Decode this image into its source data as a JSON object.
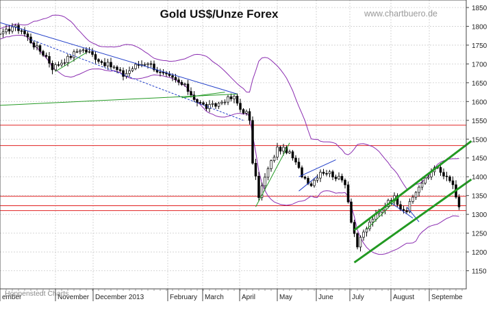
{
  "chart_data": {
    "type": "candlestick",
    "title": "Gold US$/Unze Forex",
    "watermark": "www.chartbuero.de",
    "source_note": "Hoppenstedt Charts",
    "y_axis": {
      "position": "right",
      "ticks": [
        1150,
        1200,
        1250,
        1300,
        1350,
        1400,
        1450,
        1500,
        1550,
        1600,
        1650,
        1700,
        1750,
        1800,
        1850
      ],
      "ylim": [
        1100,
        1870
      ]
    },
    "x_axis": {
      "labels": [
        "ember",
        "November",
        "December 2013",
        "February",
        "March",
        "April",
        "May",
        "June",
        "July",
        "August",
        "Septembe"
      ]
    },
    "series_price_path": [
      [
        1780,
        1
      ],
      [
        1800,
        4
      ],
      [
        1790,
        7
      ],
      [
        1750,
        11
      ],
      [
        1720,
        15
      ],
      [
        1690,
        17
      ],
      [
        1715,
        22
      ],
      [
        1740,
        26
      ],
      [
        1730,
        29
      ],
      [
        1705,
        33
      ],
      [
        1690,
        37
      ],
      [
        1670,
        40
      ],
      [
        1695,
        44
      ],
      [
        1705,
        48
      ],
      [
        1675,
        52
      ],
      [
        1660,
        56
      ],
      [
        1640,
        60
      ],
      [
        1600,
        64
      ],
      [
        1585,
        67
      ],
      [
        1590,
        70
      ],
      [
        1605,
        73
      ],
      [
        1610,
        76
      ],
      [
        1580,
        78
      ],
      [
        1570,
        80
      ],
      [
        1545,
        81
      ],
      [
        1440,
        82
      ],
      [
        1350,
        84
      ],
      [
        1420,
        87
      ],
      [
        1475,
        90
      ],
      [
        1470,
        93
      ],
      [
        1450,
        95
      ],
      [
        1405,
        98
      ],
      [
        1380,
        101
      ],
      [
        1415,
        104
      ],
      [
        1410,
        107
      ],
      [
        1395,
        110
      ],
      [
        1385,
        112
      ],
      [
        1285,
        114
      ],
      [
        1215,
        116
      ],
      [
        1250,
        118
      ],
      [
        1290,
        121
      ],
      [
        1310,
        124
      ],
      [
        1340,
        126
      ],
      [
        1345,
        128
      ],
      [
        1320,
        130
      ],
      [
        1310,
        132
      ],
      [
        1345,
        134
      ],
      [
        1375,
        136
      ],
      [
        1400,
        139
      ],
      [
        1430,
        141
      ],
      [
        1410,
        143
      ],
      [
        1395,
        145
      ],
      [
        1380,
        147
      ],
      [
        1340,
        148
      ],
      [
        1315,
        149
      ]
    ],
    "horizontal_levels": [
      1537,
      1483,
      1348,
      1323,
      1310
    ],
    "trend_lines": [
      {
        "color": "#1e3cc8",
        "width": 1,
        "from": [
          0,
          1810
        ],
        "to": [
          77,
          1620
        ]
      },
      {
        "color": "#1e3cc8",
        "width": 1,
        "dash": "3,2",
        "from": [
          10,
          1765
        ],
        "to": [
          79,
          1550
        ]
      },
      {
        "color": "#229922",
        "width": 1,
        "from": [
          0,
          1590
        ],
        "to": [
          77,
          1620
        ]
      },
      {
        "color": "#229922",
        "width": 1,
        "from": [
          18,
          1680
        ],
        "to": [
          28,
          1730
        ]
      },
      {
        "color": "#229922",
        "width": 1,
        "from": [
          59,
          1610
        ],
        "to": [
          73,
          1625
        ]
      },
      {
        "color": "#229922",
        "width": 1,
        "from": [
          83,
          1320
        ],
        "to": [
          94,
          1490
        ]
      },
      {
        "color": "#1e3cc8",
        "width": 1,
        "from": [
          97,
          1400
        ],
        "to": [
          109,
          1445
        ]
      },
      {
        "color": "#1e3cc8",
        "width": 1,
        "from": [
          97,
          1362
        ],
        "to": [
          103,
          1402
        ]
      },
      {
        "color": "#229922",
        "width": 1,
        "from": [
          119,
          1260
        ],
        "to": [
          130,
          1350
        ]
      },
      {
        "color": "#1e3cc8",
        "width": 1,
        "from": [
          127,
          1330
        ],
        "to": [
          134,
          1290
        ]
      },
      {
        "color": "#1e3cc8",
        "width": 1,
        "from": [
          132,
          1320
        ],
        "to": [
          136,
          1280
        ]
      },
      {
        "color": "#229922",
        "width": 3,
        "from": [
          115,
          1258
        ],
        "to": [
          153,
          1495
        ]
      },
      {
        "color": "#229922",
        "width": 3,
        "from": [
          115,
          1172
        ],
        "to": [
          153,
          1393
        ]
      }
    ]
  }
}
